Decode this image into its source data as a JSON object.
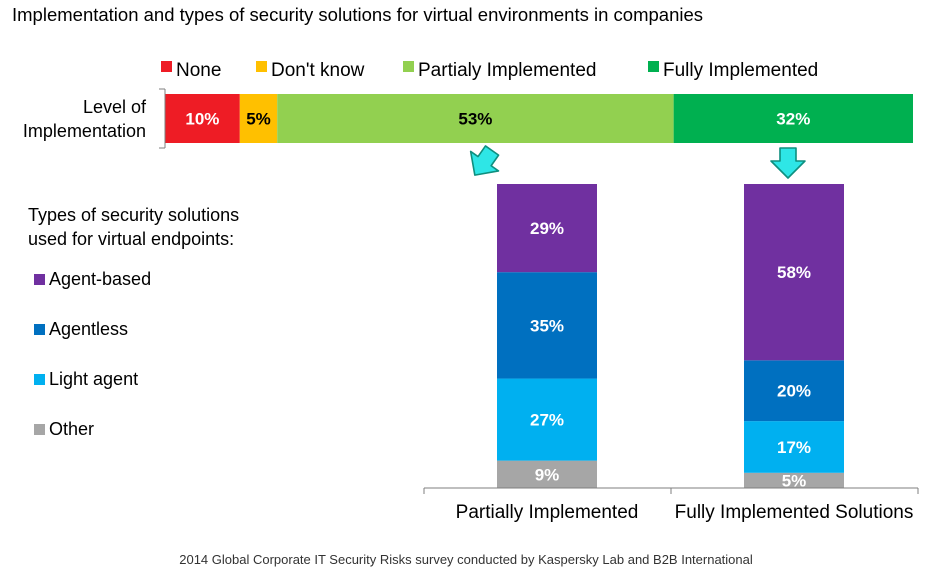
{
  "chart_data": [
    {
      "type": "bar",
      "orientation": "horizontal-stacked",
      "title": "Implementation and types of security solutions for virtual environments in companies",
      "categories": [
        "Level of Implementation"
      ],
      "category_label_lines": [
        "Level of",
        "Implementation"
      ],
      "series": [
        {
          "name": "None",
          "values": [
            10
          ],
          "label": "10%",
          "color": "#ee1c25",
          "label_color": "#ffffff"
        },
        {
          "name": "Don't know",
          "values": [
            5
          ],
          "label": "5%",
          "color": "#ffc000",
          "label_color": "#000000"
        },
        {
          "name": "Partialy Implemented",
          "values": [
            53
          ],
          "label": "53%",
          "color": "#92d050",
          "label_color": "#000000"
        },
        {
          "name": "Fully Implemented",
          "values": [
            32
          ],
          "label": "32%",
          "color": "#00b050",
          "label_color": "#ffffff"
        }
      ],
      "legend_position": "top"
    },
    {
      "type": "bar",
      "orientation": "vertical-stacked",
      "legend_title_lines": [
        "Types of security solutions",
        "used for virtual endpoints:"
      ],
      "categories": [
        "Partially Implemented",
        "Fully Implemented Solutions"
      ],
      "series": [
        {
          "name": "Other",
          "values": [
            9,
            5
          ],
          "labels": [
            "9%",
            "5%"
          ],
          "color": "#a6a6a6"
        },
        {
          "name": "Light agent",
          "values": [
            27,
            17
          ],
          "labels": [
            "27%",
            "17%"
          ],
          "color": "#00b0f0"
        },
        {
          "name": "Agentless",
          "values": [
            35,
            20
          ],
          "labels": [
            "35%",
            "20%"
          ],
          "color": "#0070c0"
        },
        {
          "name": "Agent-based",
          "values": [
            29,
            58
          ],
          "labels": [
            "29%",
            "58%"
          ],
          "color": "#7030a0"
        }
      ],
      "ylim": [
        0,
        100
      ],
      "legend_position": "left"
    }
  ],
  "source": "2014 Global Corporate IT Security Risks survey conducted by Kaspersky Lab and B2B International",
  "colors": {
    "arrow_fill": "#2ee6e6",
    "arrow_stroke": "#0e8f7f",
    "axis": "#7f7f7f"
  }
}
